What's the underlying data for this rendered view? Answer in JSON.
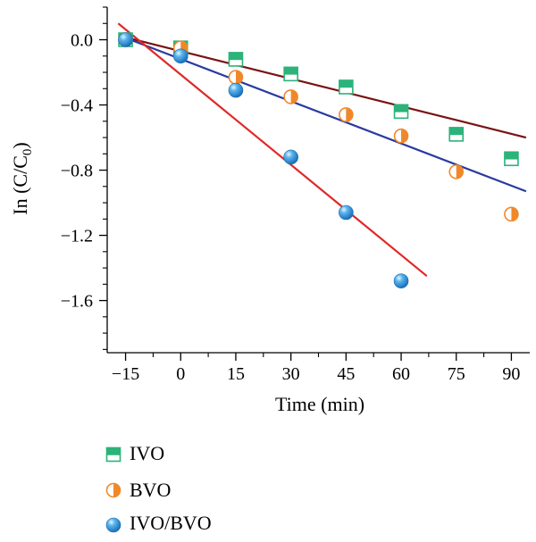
{
  "chart_data": {
    "type": "scatter",
    "xlabel": "Time (min)",
    "ylabel_main": "In (C/C",
    "ylabel_sub": "0",
    "ylabel_close": ")",
    "xlim": [
      -20,
      95
    ],
    "ylim": [
      -1.92,
      0.2
    ],
    "xticks": [
      -15,
      0,
      15,
      30,
      45,
      60,
      75,
      90
    ],
    "xtick_labels": [
      "−15",
      "0",
      "15",
      "30",
      "45",
      "60",
      "75",
      "90"
    ],
    "yticks": [
      0.0,
      -0.4,
      -0.8,
      -1.2,
      -1.6
    ],
    "ytick_labels": [
      "0.0",
      "−0.4",
      "−0.8",
      "−1.2",
      "−1.6"
    ],
    "grid": false,
    "legend_position": "bottom-left",
    "series": [
      {
        "name": "IVO",
        "marker": "square-half",
        "color": "#2bb37a",
        "line_color": "#7a1212",
        "x": [
          -15,
          0,
          15,
          30,
          45,
          60,
          75,
          90
        ],
        "y": [
          0.0,
          -0.05,
          -0.12,
          -0.21,
          -0.29,
          -0.44,
          -0.58,
          -0.73
        ],
        "fit": {
          "x": [
            -16,
            94
          ],
          "y": [
            0.02,
            -0.6
          ]
        }
      },
      {
        "name": "BVO",
        "marker": "circle-half",
        "color": "#f0882a",
        "line_color": "#2a3aa0",
        "x": [
          -15,
          0,
          15,
          30,
          45,
          60,
          75,
          90
        ],
        "y": [
          0.0,
          -0.05,
          -0.23,
          -0.35,
          -0.46,
          -0.59,
          -0.81,
          -1.07
        ],
        "fit": {
          "x": [
            -16,
            94
          ],
          "y": [
            0.02,
            -0.93
          ]
        }
      },
      {
        "name": "IVO/BVO",
        "marker": "sphere",
        "color": "#3a9ee0",
        "line_color": "#e02828",
        "x": [
          -15,
          0,
          30,
          15,
          45,
          60
        ],
        "y": [
          0.0,
          -0.1,
          -0.72,
          -0.31,
          -1.06,
          -1.48
        ],
        "fit": {
          "x": [
            -17,
            67
          ],
          "y": [
            0.1,
            -1.45
          ]
        }
      }
    ]
  }
}
